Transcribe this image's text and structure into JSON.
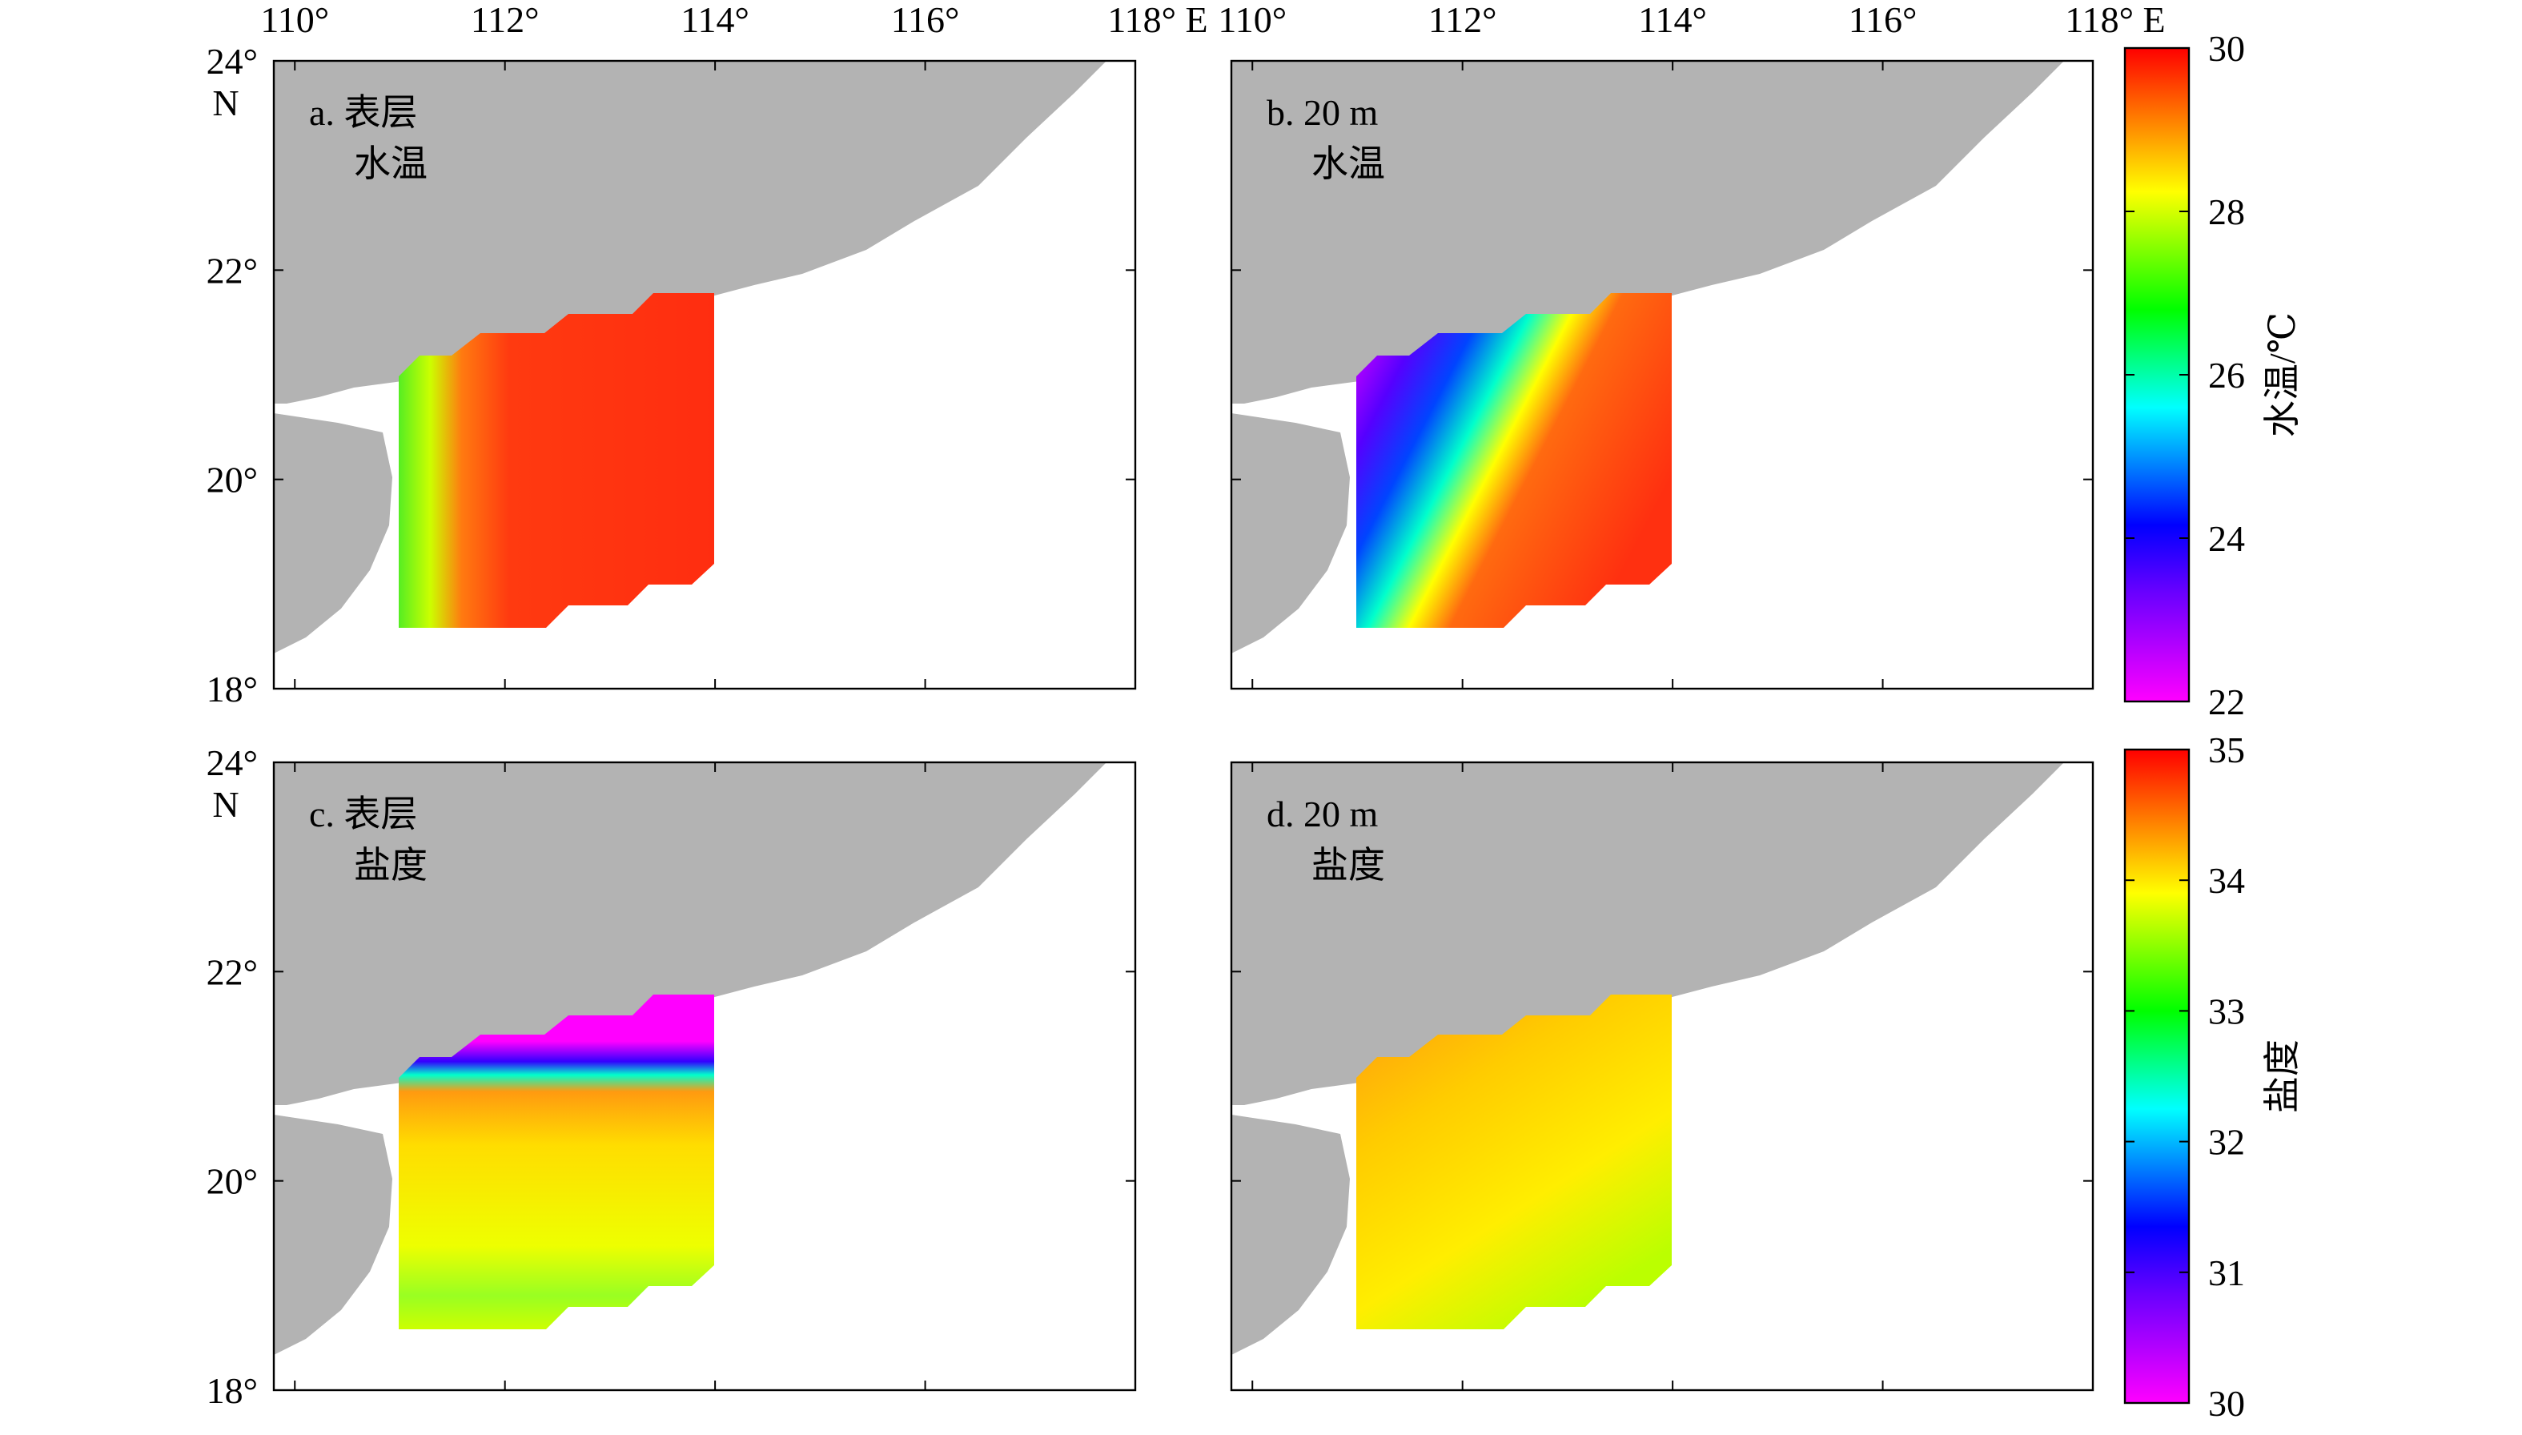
{
  "lon_axis": {
    "lim": [
      109.8,
      118
    ],
    "ticks": [
      {
        "value": 110,
        "label": "110°"
      },
      {
        "value": 112,
        "label": "112°"
      },
      {
        "value": 114,
        "label": "114°"
      },
      {
        "value": 116,
        "label": "116°"
      },
      {
        "value": 118,
        "label": "118° E"
      }
    ]
  },
  "lat_axis": {
    "lim": [
      18,
      24
    ],
    "ticks": [
      {
        "value": 18,
        "label": "18°"
      },
      {
        "value": 20,
        "label": "20°"
      },
      {
        "value": 22,
        "label": "22°"
      },
      {
        "value": 24,
        "label": "24°"
      }
    ],
    "unit": "N"
  },
  "panels": [
    {
      "label": "a. 表层",
      "variable": "水温"
    },
    {
      "label": "b. 20 m",
      "variable": "水温"
    },
    {
      "label": "c. 表层",
      "variable": "盐度"
    },
    {
      "label": "d. 20 m",
      "variable": "盐度"
    }
  ],
  "colorbars": [
    {
      "title": "水温/℃",
      "lim": [
        22,
        30
      ],
      "ticks": [
        22,
        24,
        26,
        28,
        30
      ]
    },
    {
      "title": "盐度",
      "lim": [
        30,
        35
      ],
      "ticks": [
        30,
        31,
        32,
        33,
        34,
        35
      ]
    }
  ]
}
